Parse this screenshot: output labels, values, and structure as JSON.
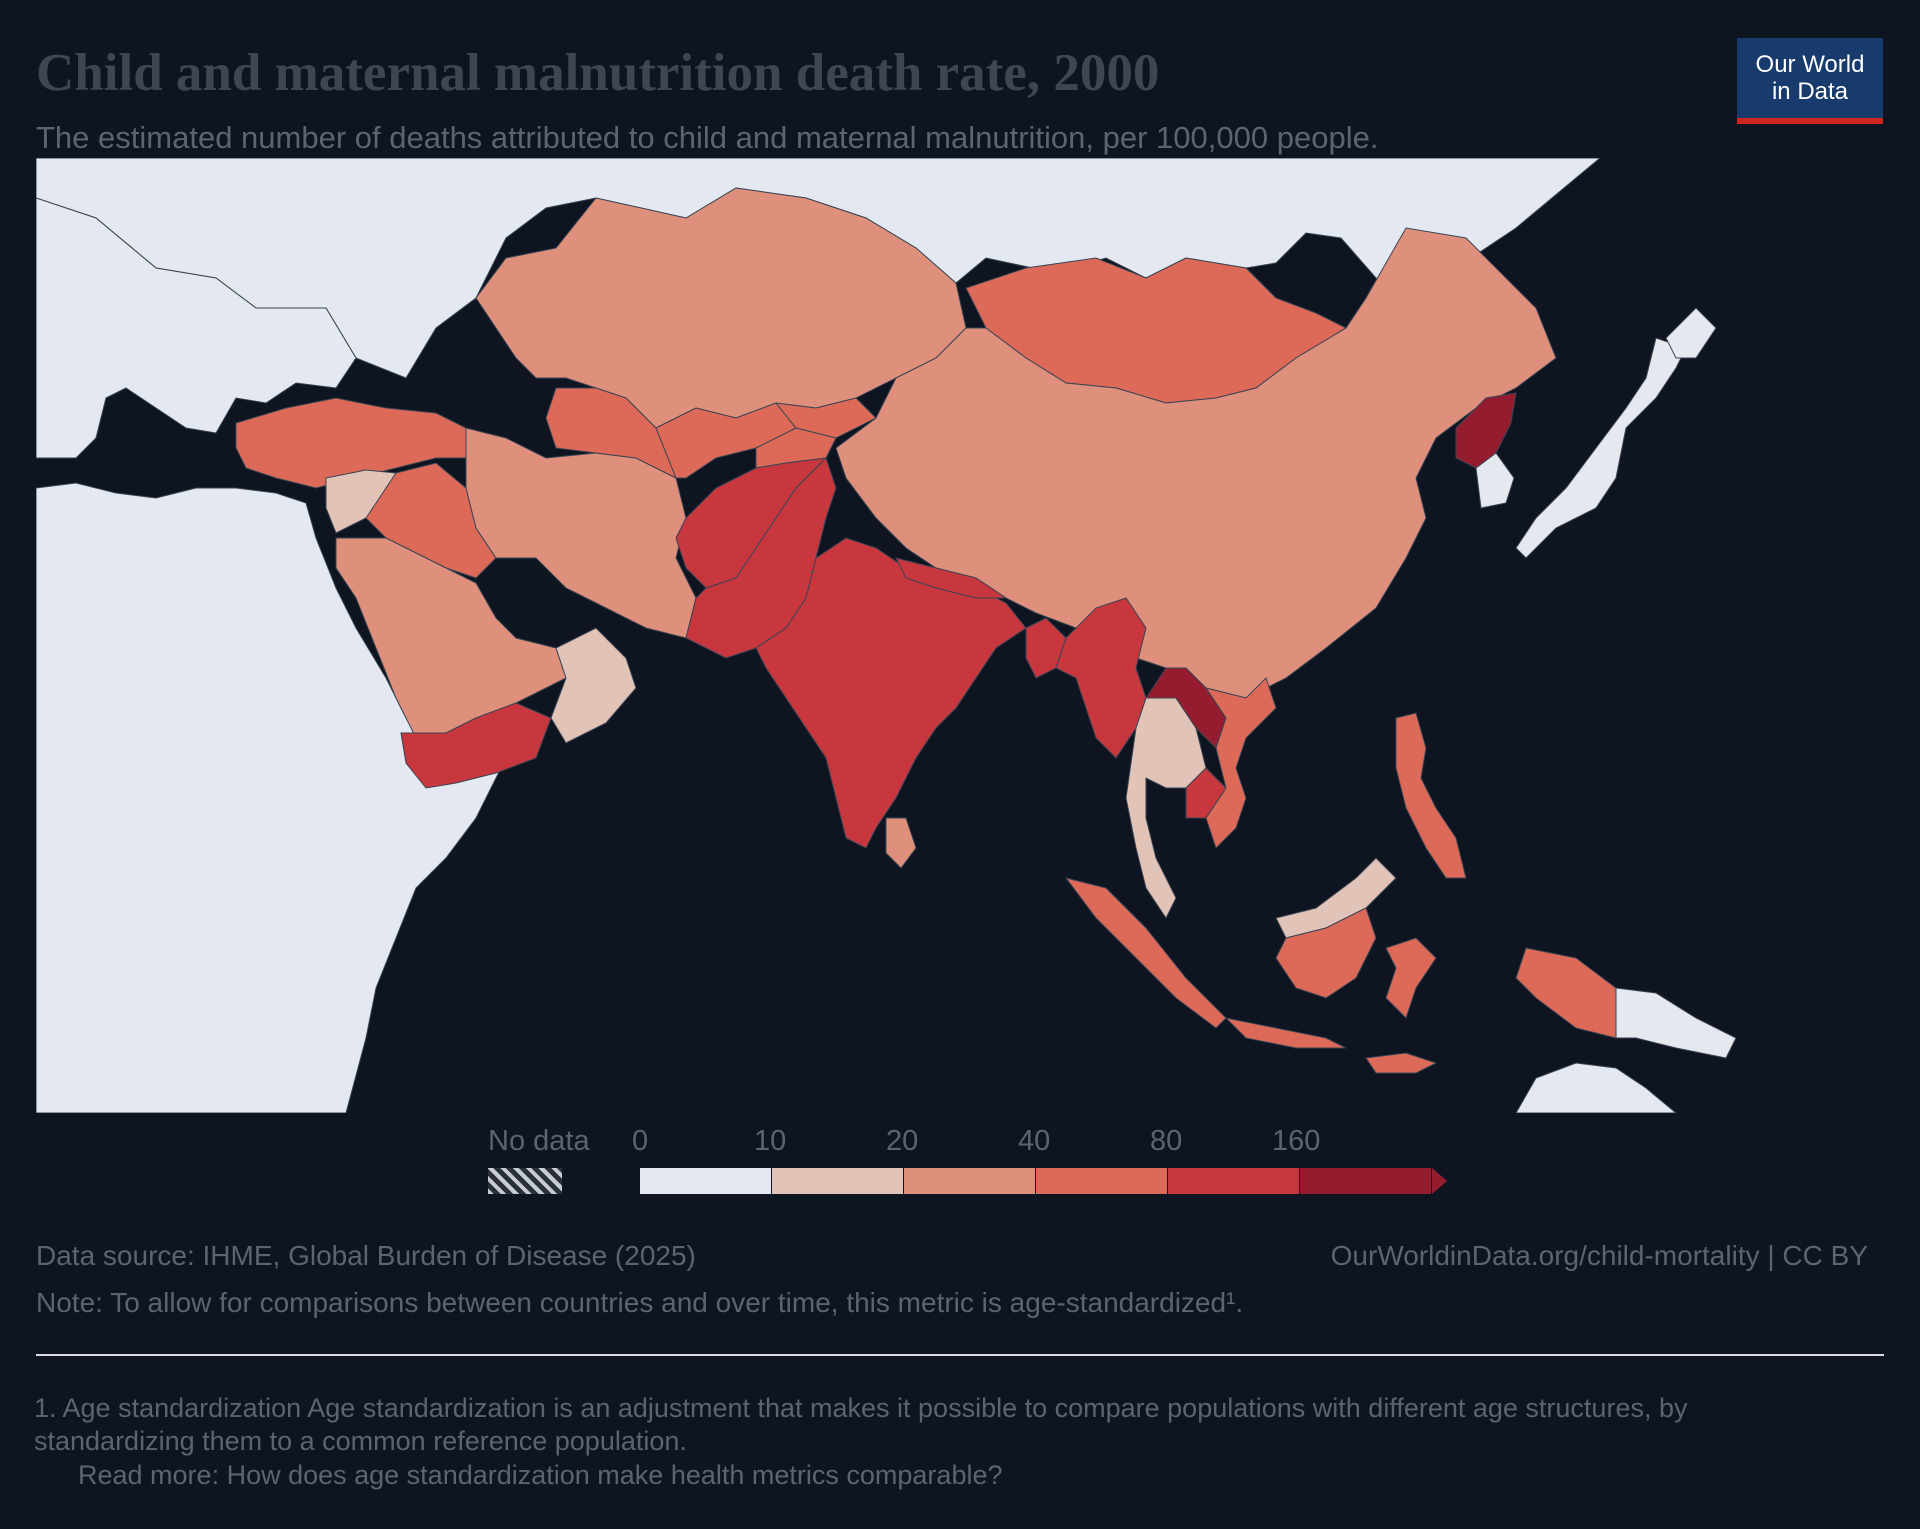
{
  "header": {
    "title": "Child and maternal malnutrition death rate, 2000",
    "subtitle": "The estimated number of deaths attributed to child and maternal malnutrition, per 100,000 people."
  },
  "logo": {
    "line1": "Our World",
    "line2": "in Data"
  },
  "colors": {
    "background": "#0f1520",
    "sea": "#0f1520",
    "no_data": "#e3e8f1",
    "bin_0_10": "#e5e8ef",
    "bin_10_20": "#e2c3b8",
    "bin_20_40": "#df907d",
    "bin_40_80": "#dd6a58",
    "bin_80_160": "#c8363e",
    "bin_160_plus": "#951c2e",
    "borders": "#3a4452"
  },
  "legend": {
    "no_data_label": "No data",
    "ticks": [
      "0",
      "10",
      "20",
      "40",
      "80",
      "160"
    ]
  },
  "chart_data": {
    "type": "choropleth",
    "title": "Child and maternal malnutrition death rate, 2000",
    "subtitle": "The estimated number of deaths attributed to child and maternal malnutrition, per 100,000 people.",
    "bins": [
      {
        "range": "0-10",
        "color": "#e5e8ef"
      },
      {
        "range": "10-20",
        "color": "#e2c3b8"
      },
      {
        "range": "20-40",
        "color": "#df907d"
      },
      {
        "range": "40-80",
        "color": "#dd6a58"
      },
      {
        "range": "80-160",
        "color": "#c8363e"
      },
      {
        "range": "160+",
        "color": "#951c2e"
      }
    ],
    "regions": {
      "Kazakhstan": "20-40",
      "China": "20-40",
      "Iran": "20-40",
      "Saudi Arabia": "20-40",
      "Uzbekistan": "20-40",
      "Malaysia": "20-40",
      "Russia": "20-40",
      "Mongolia": "40-80",
      "Turkey": "40-80",
      "Iraq": "40-80",
      "Turkmenistan": "40-80",
      "Kyrgyzstan": "40-80",
      "Tajikistan": "40-80",
      "Indonesia": "40-80",
      "Philippines": "40-80",
      "Papua New Guinea": "40-80",
      "Vietnam": "40-80",
      "Syria": "10-20",
      "Oman": "10-20",
      "UAE": "10-20",
      "Thailand": "10-20",
      "Afghanistan": "80-160",
      "Pakistan": "80-160",
      "India": "80-160",
      "Nepal": "80-160",
      "Bangladesh": "80-160",
      "Myanmar": "80-160",
      "Yemen": "80-160",
      "Cambodia": "80-160",
      "Sri Lanka": "20-40",
      "North Korea": "160+",
      "Laos": "160+",
      "Japan": "0-10",
      "South Korea": "0-10",
      "Europe": "0-10",
      "Africa": "0-10",
      "Australia": "0-10"
    }
  },
  "footer": {
    "source": "Data source: IHME, Global Burden of Disease (2025)",
    "url": "OurWorldinData.org/child-mortality | CC BY",
    "note": "Note: To allow for comparisons between countries and over time, this metric is age-standardized¹.",
    "footnote": "1. Age standardization Age standardization is an adjustment that makes it possible to compare populations with different age structures, by standardizing them to a common reference population.",
    "read_more": "Read more: How does age standardization make health metrics comparable?"
  }
}
